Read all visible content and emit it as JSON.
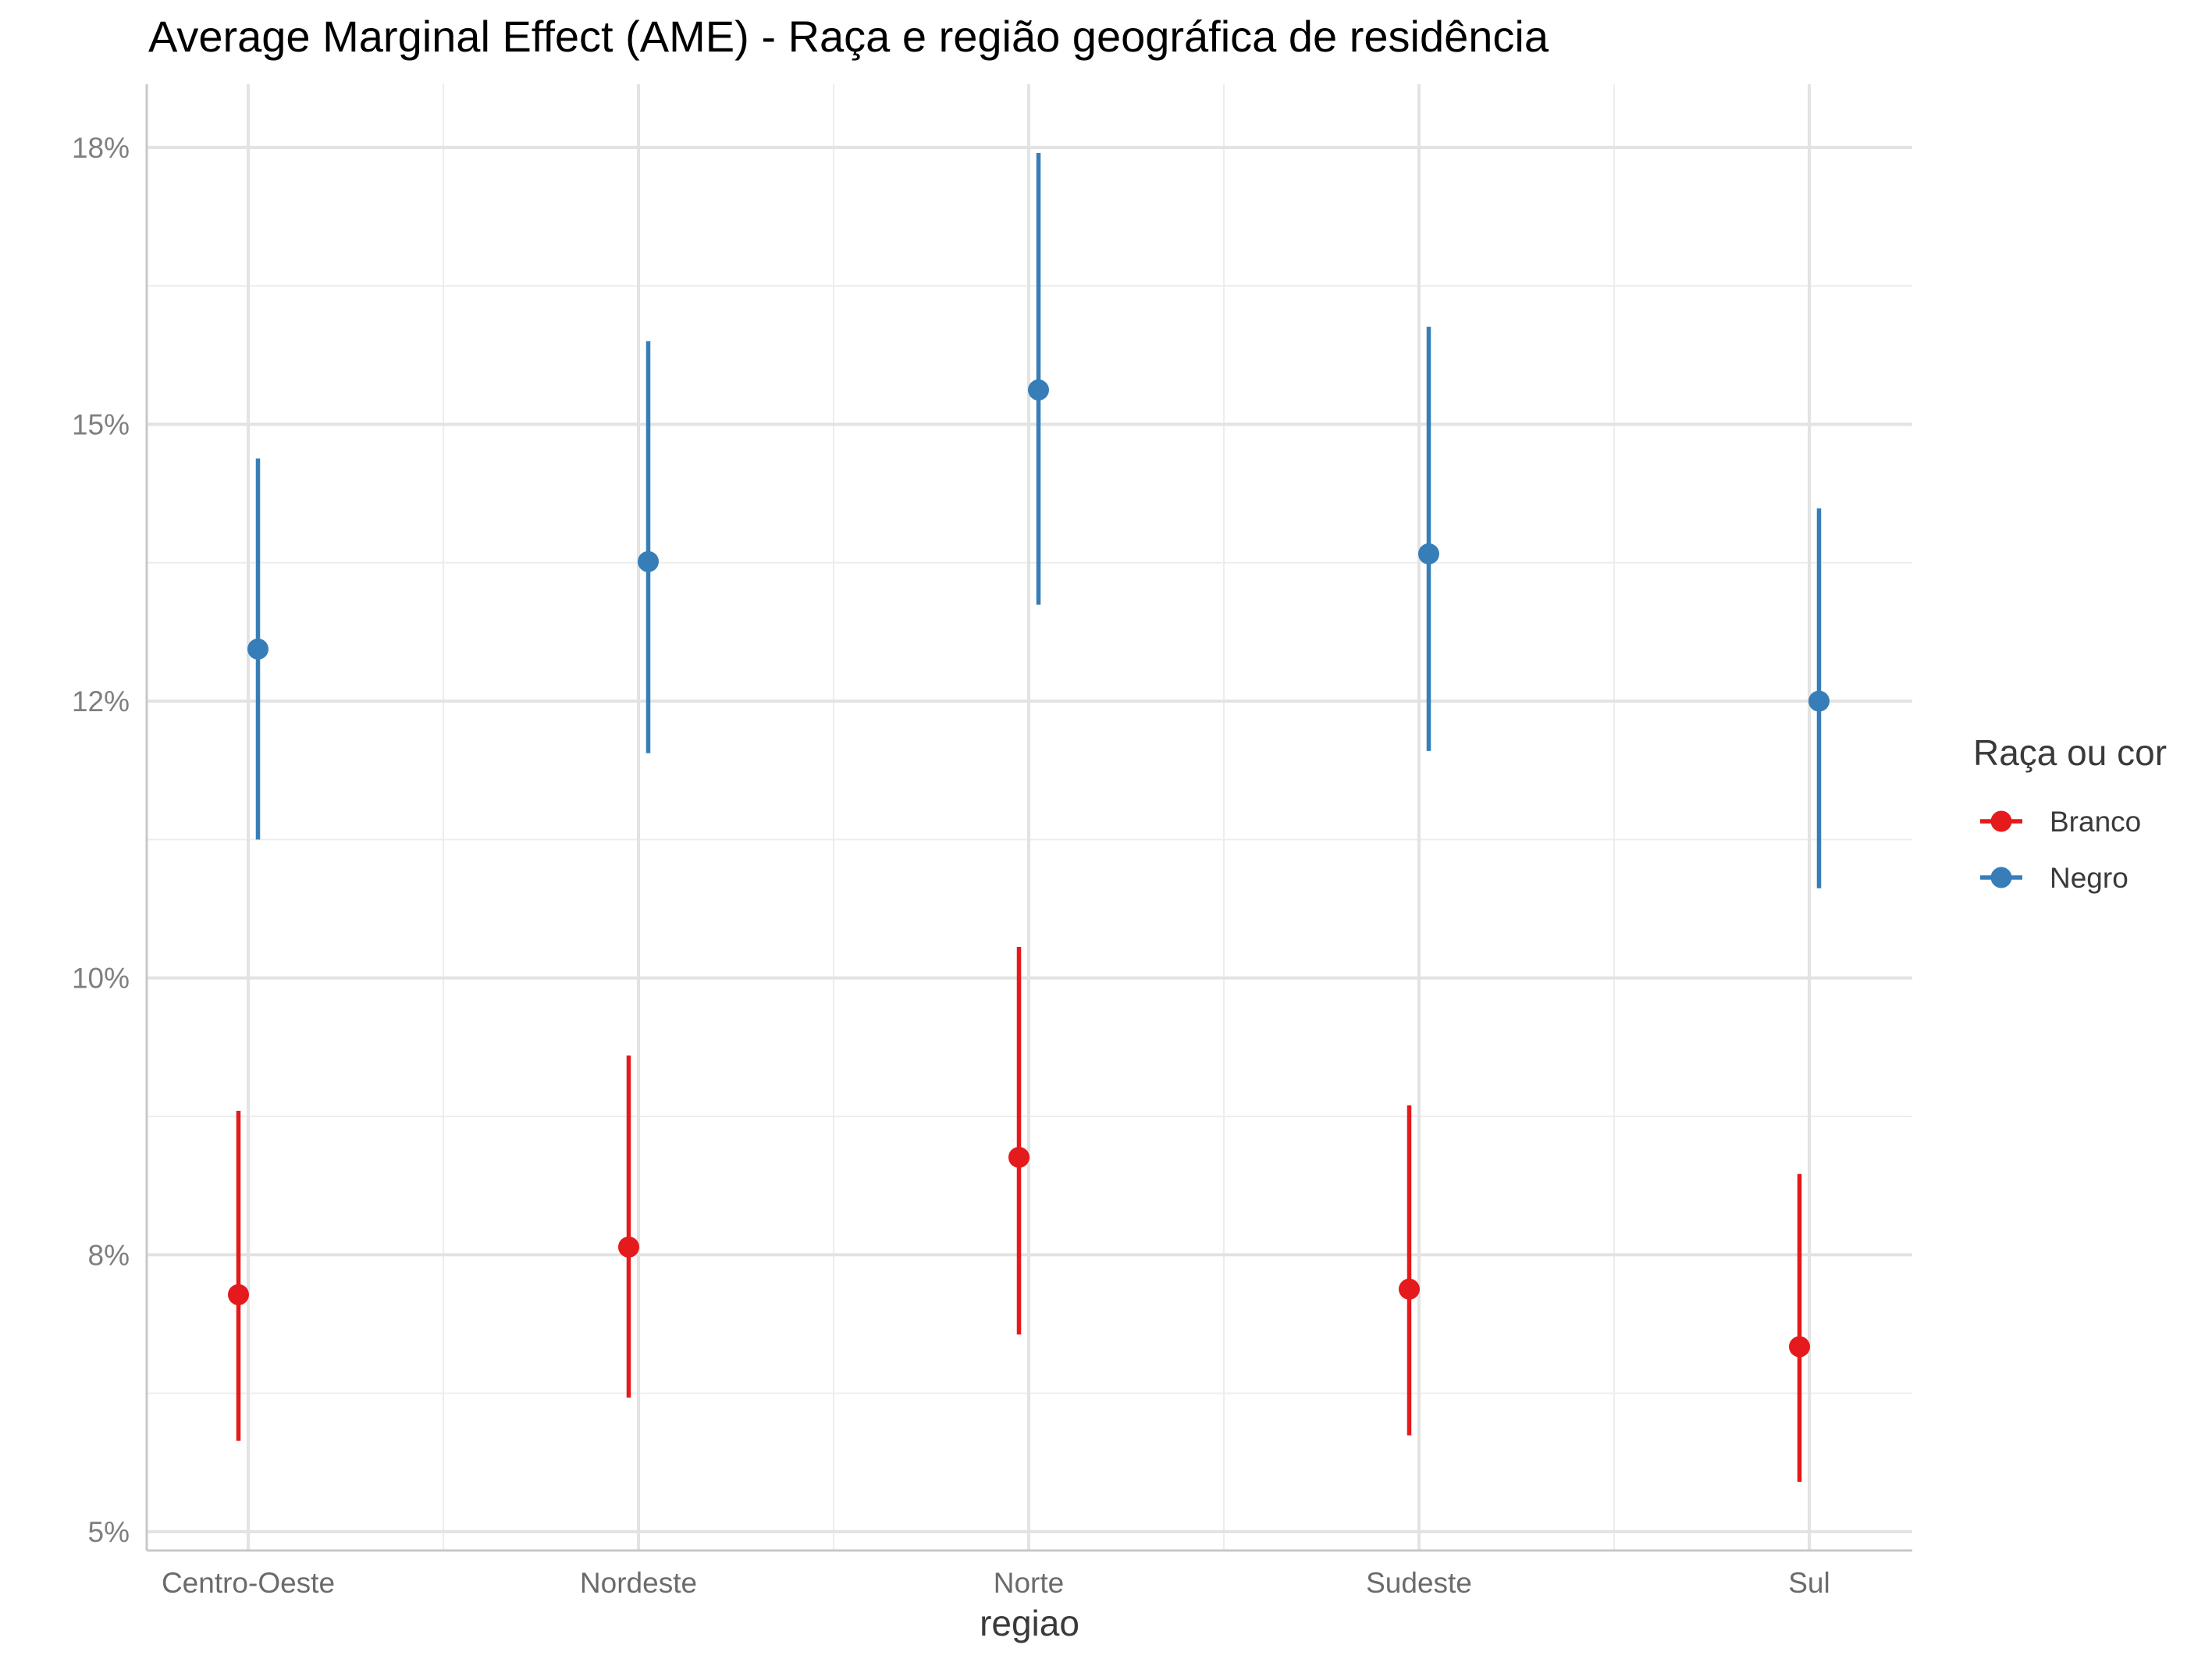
{
  "chart_data": {
    "type": "scatter",
    "title": "Average Marginal Effect (AME) - Raça e região geográfica de residência",
    "xlabel": "regiao",
    "ylabel": "",
    "categories": [
      "Centro-Oeste",
      "Nordeste",
      "Norte",
      "Sudeste",
      "Sul"
    ],
    "y_ticks": [
      0.05,
      0.075,
      0.1,
      0.125,
      0.15,
      0.175
    ],
    "y_tick_labels": [
      "5%",
      "8%",
      "10%",
      "12%",
      "15%",
      "18%"
    ],
    "ylim": [
      0.0483,
      0.1807
    ],
    "grid": true,
    "legend": {
      "title": "Raça ou cor",
      "position": "right"
    },
    "series": [
      {
        "name": "Branco",
        "color": "#E41A1C",
        "values": [
          0.0714,
          0.0757,
          0.0838,
          0.0719,
          0.0667
        ],
        "ci_low": [
          0.0582,
          0.0621,
          0.0678,
          0.0587,
          0.0545
        ],
        "ci_high": [
          0.088,
          0.093,
          0.1028,
          0.0885,
          0.0823
        ]
      },
      {
        "name": "Negro",
        "color": "#377EB8",
        "values": [
          0.1297,
          0.1376,
          0.1531,
          0.1383,
          0.125
        ],
        "ci_low": [
          0.1125,
          0.1203,
          0.1337,
          0.1205,
          0.1081
        ],
        "ci_high": [
          0.1469,
          0.1575,
          0.1745,
          0.1588,
          0.1424
        ]
      }
    ]
  }
}
